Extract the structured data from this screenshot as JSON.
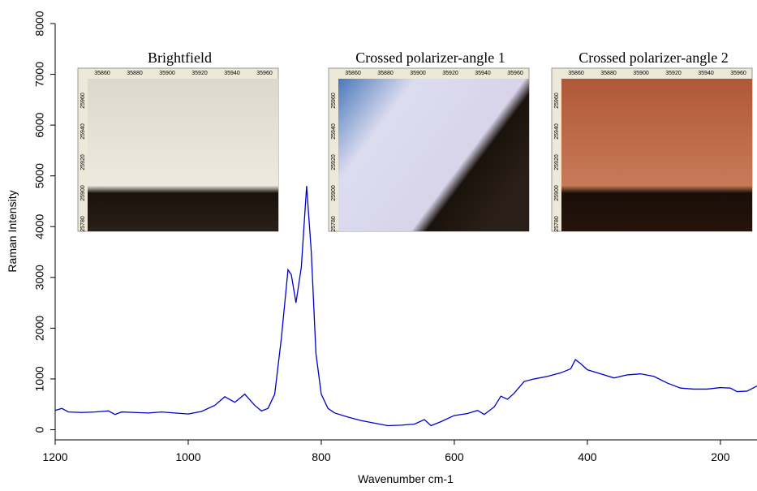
{
  "chart_data": {
    "type": "line",
    "xlabel": "Wavenumber cm-1",
    "ylabel": "Raman Intensity",
    "xlim": [
      1200,
      145
    ],
    "xticks": [
      1200,
      1000,
      800,
      600,
      400,
      200
    ],
    "ylim": [
      -200,
      8000
    ],
    "yticks": [
      0,
      1000,
      2000,
      3000,
      4000,
      5000,
      6000,
      7000,
      8000
    ],
    "x": [
      1200,
      1190,
      1180,
      1160,
      1140,
      1120,
      1110,
      1100,
      1080,
      1060,
      1040,
      1020,
      1000,
      980,
      960,
      945,
      930,
      915,
      900,
      890,
      880,
      870,
      860,
      850,
      845,
      838,
      830,
      822,
      815,
      808,
      800,
      790,
      780,
      760,
      740,
      720,
      700,
      680,
      660,
      645,
      635,
      620,
      600,
      580,
      565,
      555,
      540,
      530,
      520,
      510,
      495,
      480,
      460,
      440,
      425,
      418,
      410,
      400,
      380,
      360,
      340,
      320,
      300,
      280,
      260,
      240,
      220,
      200,
      185,
      175,
      160,
      145
    ],
    "series": [
      {
        "color": "#0000cc",
        "values": [
          380,
          420,
          350,
          340,
          350,
          370,
          300,
          350,
          340,
          330,
          350,
          330,
          310,
          360,
          480,
          650,
          540,
          700,
          480,
          370,
          420,
          700,
          1800,
          3150,
          3050,
          2500,
          3200,
          4800,
          3500,
          1500,
          700,
          420,
          330,
          250,
          180,
          130,
          80,
          90,
          110,
          200,
          80,
          160,
          280,
          320,
          380,
          300,
          450,
          660,
          600,
          720,
          950,
          1000,
          1050,
          1120,
          1200,
          1380,
          1300,
          1180,
          1100,
          1020,
          1080,
          1100,
          1050,
          920,
          820,
          800,
          800,
          830,
          820,
          750,
          760,
          860
        ]
      }
    ],
    "insets": [
      {
        "title": "Brightfield"
      },
      {
        "title": "Crossed polarizer-angle 1"
      },
      {
        "title": "Crossed polarizer-angle 2"
      }
    ],
    "inset_xticks": [
      "35860",
      "35880",
      "35900",
      "35920",
      "35940",
      "35960"
    ],
    "inset_yticks": [
      "25960",
      "25940",
      "25920",
      "25900",
      "25780"
    ]
  }
}
